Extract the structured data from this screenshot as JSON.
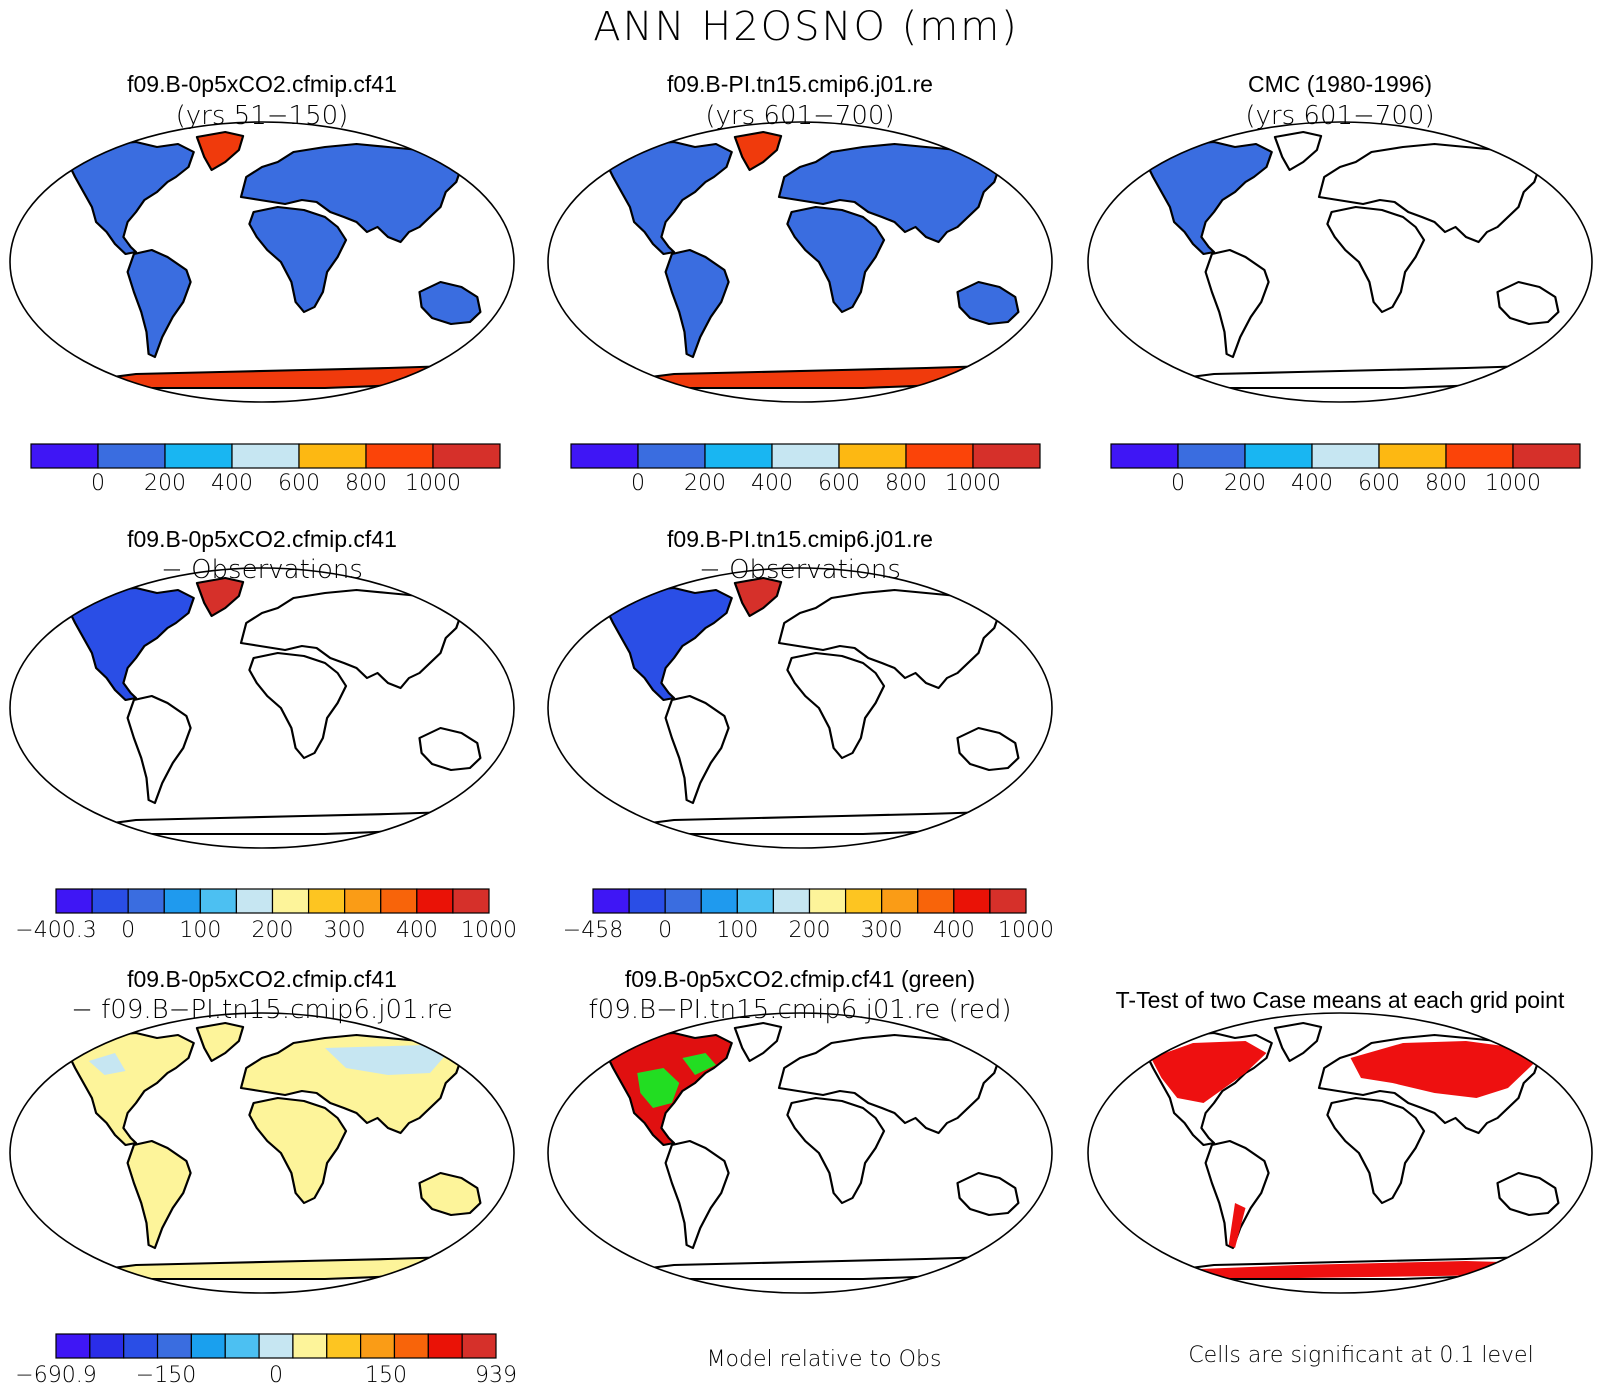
{
  "figure_title": "ANN H2OSNO (mm)",
  "panels": [
    {
      "id": "case1",
      "title1": "f09.B-0p5xCO2.cfmip.cf41",
      "title2": "(yrs 51−150)",
      "kind": "case",
      "glacier": "#f03a0c"
    },
    {
      "id": "case2",
      "title1": "f09.B-PI.tn15.cmip6.j01.re",
      "title2": "(yrs 601−700)",
      "kind": "case",
      "glacier": "#f03a0c"
    },
    {
      "id": "obs",
      "title1": "CMC (1980-1996)",
      "title2": "(yrs 601−700)",
      "kind": "obs"
    },
    {
      "id": "diff1",
      "title1": "f09.B-0p5xCO2.cfmip.cf41",
      "title2": "− Observations",
      "kind": "diffobs"
    },
    {
      "id": "diff2",
      "title1": "f09.B-PI.tn15.cmip6.j01.re",
      "title2": "− Observations",
      "kind": "diffobs"
    },
    {
      "id": "diffcase",
      "title1": "f09.B-0p5xCO2.cfmip.cf41",
      "title2": "− f09.B−PI.tn15.cmip6.j01.re",
      "kind": "diffcase"
    },
    {
      "id": "rel",
      "title1": "f09.B-0p5xCO2.cfmip.cf41 (green)",
      "title2": "f09.B−PI.tn15.cmip6.j01.re (red)",
      "kind": "rel"
    },
    {
      "id": "ttest",
      "title1": "T-Test of two Case means at each grid point",
      "title2": "",
      "kind": "ttest"
    }
  ],
  "colorbars": [
    {
      "id": "cb1",
      "colors": [
        "#3f16f5",
        "#3a6de0",
        "#19b6f2",
        "#c6e6f2",
        "#fdb812",
        "#fb4409",
        "#d6302a"
      ],
      "labels": [
        "0",
        "200",
        "400",
        "600",
        "800",
        "1000"
      ]
    },
    {
      "id": "cb2",
      "colors": [
        "#3f16f5",
        "#3a6de0",
        "#19b6f2",
        "#c6e6f2",
        "#fdb812",
        "#fb4409",
        "#d6302a"
      ],
      "labels": [
        "0",
        "200",
        "400",
        "600",
        "800",
        "1000"
      ]
    },
    {
      "id": "cb3",
      "colors": [
        "#3f16f5",
        "#3a6de0",
        "#19b6f2",
        "#c6e6f2",
        "#fdb812",
        "#fb4409",
        "#d6302a"
      ],
      "labels": [
        "0",
        "200",
        "400",
        "600",
        "800",
        "1000"
      ]
    },
    {
      "id": "cb4",
      "colors": [
        "#3f16f5",
        "#2a4ee6",
        "#3a6de0",
        "#1f9aee",
        "#4cc0f2",
        "#c6e6f2",
        "#fdf49a",
        "#fdc521",
        "#fa9c16",
        "#f8640a",
        "#ea1206",
        "#d6302a"
      ],
      "labels": [
        "−400.3",
        "0",
        "100",
        "200",
        "300",
        "400",
        "1000"
      ]
    },
    {
      "id": "cb5",
      "colors": [
        "#3f16f5",
        "#2a4ee6",
        "#3a6de0",
        "#1f9aee",
        "#4cc0f2",
        "#c6e6f2",
        "#fdf49a",
        "#fdc521",
        "#fa9c16",
        "#f8640a",
        "#ea1206",
        "#d6302a"
      ],
      "labels": [
        "−458",
        "0",
        "100",
        "200",
        "300",
        "400",
        "1000"
      ]
    },
    {
      "id": "cb6",
      "colors": [
        "#3f16f5",
        "#2a2de8",
        "#2a4ee6",
        "#3a6de0",
        "#1aa0ee",
        "#4cc0f2",
        "#c6e6f2",
        "#fdf49a",
        "#fdc521",
        "#fa9c16",
        "#f8640a",
        "#ea1206",
        "#d6302a"
      ],
      "labels": [
        "−690.9",
        "−150",
        "0",
        "150",
        "939"
      ]
    }
  ],
  "footer_notes": {
    "rel": "Model relative to Obs",
    "ttest": "Cells are significant at 0.1 level"
  },
  "colors": {
    "snow_blue": "#3a6de0",
    "glacier_red": "#f03a0c",
    "diff_blue": "#2a4ee6",
    "diff_red": "#d6302a",
    "diffcase_yellow": "#fdf49a",
    "diffcase_lightblue": "#c6e6f2",
    "rel_green": "#22dd22",
    "rel_red": "#e01010",
    "ttest_red": "#ee1010"
  }
}
